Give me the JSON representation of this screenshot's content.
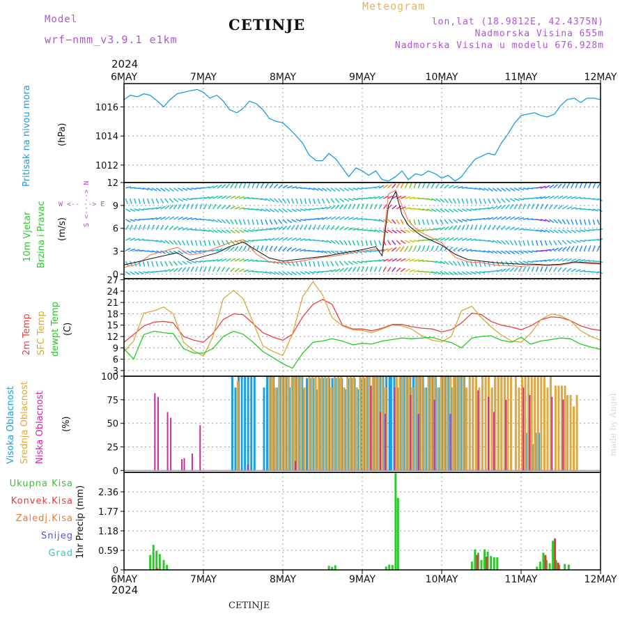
{
  "header": {
    "model_label": "Model",
    "model_name": "wrf−nmm_v3.9.1 e1km",
    "station": "CETINJE",
    "meteogram": "Meteogram",
    "lonlat": "lon,lat (18.9812E, 42.4375N)",
    "altitude": "Nadmorska Visina 655m",
    "model_altitude": "Nadmorska Visina u modelu 676.928m",
    "year_top": "2024",
    "year_bottom": "2024",
    "footer_station": "CETINJE",
    "watermark": "made by Angel"
  },
  "colors": {
    "pressure": "#1a9be6",
    "wind_label": "#2ec72e",
    "temp2m": "#e84040",
    "sfc_temp": "#d8a838",
    "dewpoint": "#22cc22",
    "cloud_high": "#19a0e6",
    "cloud_mid": "#e0a840",
    "cloud_low": "#c82a9a",
    "precip_total": "#2ec72e",
    "precip_conv": "#e03a3a",
    "precip_frozen": "#f07830",
    "snow": "#5050e0",
    "grad": "#30c8c8",
    "wind_dir_legend": "#b052d8"
  },
  "chart_data": [
    {
      "type": "line",
      "panel": "pressure",
      "ylabel_rotated": [
        "Pritisak na nivou mora",
        "(hPa)"
      ],
      "x_ticks": [
        "6MAY",
        "7MAY",
        "8MAY",
        "9MAY",
        "10MAY",
        "11MAY",
        "12MAY"
      ],
      "yticks": [
        1012,
        1014,
        1016
      ],
      "ylim": [
        1010.8,
        1017.6
      ],
      "grid": true,
      "x_days": [
        0,
        0.08,
        0.17,
        0.25,
        0.33,
        0.42,
        0.5,
        0.58,
        0.67,
        0.75,
        0.83,
        0.92,
        1,
        1.08,
        1.17,
        1.25,
        1.33,
        1.42,
        1.5,
        1.58,
        1.67,
        1.75,
        1.83,
        1.92,
        2,
        2.08,
        2.17,
        2.25,
        2.33,
        2.42,
        2.5,
        2.58,
        2.67,
        2.75,
        2.83,
        2.92,
        3,
        3.08,
        3.17,
        3.25,
        3.33,
        3.42,
        3.5,
        3.58,
        3.67,
        3.75,
        3.83,
        3.92,
        4,
        4.08,
        4.17,
        4.25,
        4.33,
        4.42,
        4.5,
        4.58,
        4.67,
        4.75,
        4.83,
        4.92,
        5,
        5.08,
        5.17,
        5.25,
        5.33,
        5.42,
        5.5,
        5.58,
        5.67,
        5.75,
        5.83,
        5.92,
        6
      ],
      "values": [
        1016.5,
        1016.8,
        1016.7,
        1016.9,
        1016.8,
        1016.4,
        1016.0,
        1016.5,
        1016.9,
        1017.0,
        1017.1,
        1017.2,
        1017.0,
        1016.6,
        1016.8,
        1016.4,
        1015.8,
        1015.6,
        1015.9,
        1016.4,
        1016.2,
        1015.8,
        1015.2,
        1015.0,
        1014.9,
        1014.5,
        1014.0,
        1013.5,
        1012.7,
        1012.3,
        1012.3,
        1012.8,
        1012.4,
        1011.8,
        1011.2,
        1011.8,
        1011.6,
        1011.3,
        1011.6,
        1011.0,
        1010.9,
        1011.2,
        1011.6,
        1011.0,
        1011.4,
        1011.3,
        1011.6,
        1011.4,
        1011.1,
        1011.3,
        1010.9,
        1011.2,
        1011.8,
        1012.4,
        1012.6,
        1012.8,
        1012.7,
        1013.5,
        1014.1,
        1014.9,
        1015.4,
        1015.5,
        1015.6,
        1015.4,
        1015.3,
        1015.5,
        1016.1,
        1016.5,
        1016.6,
        1016.3,
        1016.6,
        1016.6,
        1016.5
      ]
    },
    {
      "type": "line",
      "panel": "wind",
      "ylabel_rotated": [
        "10m Vjetar",
        "Brzina i Pravac",
        "(m/s)"
      ],
      "direction_legend": [
        "W <-- --> E",
        "S <-- --> N"
      ],
      "yticks": [
        0,
        3,
        6,
        9,
        12
      ],
      "ylim": [
        -0.6,
        12
      ],
      "grid": true,
      "x_days": [
        0,
        0.17,
        0.33,
        0.5,
        0.67,
        0.83,
        1,
        1.17,
        1.33,
        1.5,
        1.67,
        1.83,
        2,
        2.17,
        2.33,
        2.5,
        2.67,
        2.83,
        3,
        3.17,
        3.25,
        3.33,
        3.42,
        3.5,
        3.58,
        3.67,
        3.75,
        3.83,
        4,
        4.17,
        4.33,
        4.5,
        4.67,
        4.83,
        5,
        5.17,
        5.33,
        5.5,
        5.67,
        5.83,
        6
      ],
      "speed_mean": [
        1.2,
        1.6,
        2.0,
        2.4,
        2.8,
        1.8,
        2.3,
        2.8,
        3.6,
        4.2,
        3.1,
        2.1,
        1.7,
        1.9,
        2.1,
        2.3,
        2.6,
        2.9,
        3.2,
        3.6,
        2.4,
        9.0,
        10.8,
        7.8,
        6.4,
        5.6,
        5.0,
        4.6,
        3.8,
        2.6,
        1.9,
        1.7,
        1.5,
        1.4,
        1.3,
        1.3,
        1.2,
        1.3,
        1.6,
        1.5,
        1.4
      ],
      "speed_gust": [
        0.9,
        1.3,
        2.5,
        3.0,
        3.5,
        2.5,
        2.8,
        3.5,
        4.1,
        4.5,
        2.6,
        1.6,
        1.5,
        1.6,
        1.9,
        2.2,
        2.4,
        2.7,
        3.0,
        3.3,
        3.0,
        10.5,
        11.0,
        9.0,
        7.0,
        6.0,
        5.4,
        5.0,
        4.1,
        2.2,
        1.6,
        1.5,
        1.2,
        1.1,
        1.0,
        1.2,
        1.1,
        1.2,
        1.5,
        1.4,
        1.3
      ]
    },
    {
      "type": "line",
      "panel": "temperature",
      "ylabel_rotated": [
        "2m Temp",
        "SFC Temp",
        "dewpt Temp",
        "(C)"
      ],
      "yticks": [
        3,
        6,
        9,
        12,
        15,
        18,
        21,
        24,
        27
      ],
      "ylim": [
        1.5,
        27.3
      ],
      "grid": true,
      "x_days": [
        0,
        0.12,
        0.25,
        0.38,
        0.5,
        0.62,
        0.75,
        0.88,
        1,
        1.12,
        1.25,
        1.38,
        1.5,
        1.62,
        1.75,
        1.88,
        2,
        2.12,
        2.25,
        2.38,
        2.5,
        2.62,
        2.75,
        2.88,
        3,
        3.12,
        3.25,
        3.38,
        3.5,
        3.62,
        3.75,
        3.88,
        4,
        4.12,
        4.25,
        4.38,
        4.5,
        4.62,
        4.75,
        4.88,
        5,
        5.12,
        5.25,
        5.38,
        5.5,
        5.62,
        5.75,
        5.88,
        6
      ],
      "series": [
        {
          "name": "2m Temp",
          "values": [
            10.5,
            12.5,
            14.8,
            15.8,
            16.0,
            15.6,
            12.0,
            11.0,
            10.5,
            12.8,
            16.5,
            18.0,
            17.8,
            15.5,
            13.0,
            11.8,
            11.0,
            12.6,
            17.2,
            20.5,
            21.8,
            20.5,
            15.0,
            14.0,
            14.0,
            13.5,
            14.2,
            15.2,
            15.2,
            14.6,
            14.2,
            14.0,
            13.2,
            13.8,
            15.6,
            18.2,
            17.8,
            16.0,
            15.0,
            14.5,
            13.8,
            14.8,
            16.4,
            17.2,
            17.0,
            16.2,
            14.8,
            14.0,
            13.6
          ]
        },
        {
          "name": "SFC Temp",
          "values": [
            8.0,
            10.8,
            18.2,
            18.8,
            19.8,
            18.0,
            10.5,
            8.2,
            6.8,
            12.0,
            22.0,
            24.2,
            22.0,
            16.0,
            9.5,
            8.0,
            7.0,
            12.6,
            22.5,
            26.5,
            23.0,
            17.0,
            14.8,
            13.8,
            13.6,
            13.0,
            14.0,
            15.0,
            14.8,
            14.0,
            12.2,
            11.0,
            10.6,
            12.0,
            18.8,
            20.0,
            17.0,
            14.6,
            12.4,
            10.8,
            10.5,
            12.8,
            16.5,
            18.0,
            17.5,
            16.2,
            13.5,
            12.0,
            11.0
          ]
        },
        {
          "name": "dewpt Temp",
          "values": [
            8.8,
            6.0,
            12.5,
            13.4,
            13.0,
            12.8,
            8.8,
            7.6,
            7.6,
            8.8,
            12.0,
            13.4,
            12.6,
            10.6,
            8.0,
            6.4,
            4.8,
            3.6,
            7.6,
            10.5,
            10.8,
            11.4,
            10.8,
            9.8,
            10.2,
            10.0,
            10.8,
            11.2,
            11.6,
            11.4,
            11.6,
            11.8,
            11.0,
            10.4,
            9.0,
            11.6,
            12.0,
            12.2,
            11.0,
            10.5,
            11.8,
            10.0,
            10.8,
            11.2,
            11.6,
            11.4,
            10.0,
            9.2,
            8.6
          ]
        }
      ]
    },
    {
      "type": "bar",
      "panel": "clouds",
      "ylabel_rotated": [
        "Visoka Oblacnost",
        "Srednja Oblacnost",
        "Niska Oblacnost",
        "(%)"
      ],
      "yticks": [
        0,
        25,
        50,
        75,
        100
      ],
      "ylim": [
        -2,
        100
      ],
      "grid": true,
      "high_segments": [
        [
          1.35,
          1.65,
          100
        ],
        [
          1.75,
          2.25,
          100
        ],
        [
          2.25,
          3.05,
          98
        ],
        [
          3.05,
          3.35,
          100
        ],
        [
          3.35,
          4.3,
          100
        ],
        [
          4.3,
          4.85,
          98
        ],
        [
          5.05,
          5.25,
          40
        ]
      ],
      "mid_segments": [
        [
          1.4,
          1.45,
          95
        ],
        [
          1.8,
          2.3,
          100
        ],
        [
          2.3,
          3.3,
          100
        ],
        [
          3.4,
          4.9,
          100
        ],
        [
          4.9,
          5.4,
          100
        ],
        [
          5.4,
          5.55,
          90
        ],
        [
          5.55,
          5.7,
          80
        ]
      ],
      "low_bars": [
        [
          0.38,
          82
        ],
        [
          0.42,
          78
        ],
        [
          0.54,
          62
        ],
        [
          0.58,
          56
        ],
        [
          0.72,
          12
        ],
        [
          0.75,
          13
        ],
        [
          0.85,
          18
        ],
        [
          0.95,
          48
        ],
        [
          1.55,
          6
        ],
        [
          2.15,
          10
        ],
        [
          3.1,
          90
        ],
        [
          3.22,
          62
        ],
        [
          3.28,
          60
        ],
        [
          3.4,
          88
        ],
        [
          3.6,
          80
        ],
        [
          3.7,
          60
        ],
        [
          3.9,
          75
        ],
        [
          4.1,
          60
        ],
        [
          4.45,
          85
        ],
        [
          4.58,
          78
        ],
        [
          4.65,
          62
        ],
        [
          4.8,
          75
        ],
        [
          5.02,
          88
        ],
        [
          5.1,
          80
        ],
        [
          5.38,
          78
        ],
        [
          5.52,
          75
        ]
      ]
    },
    {
      "type": "bar",
      "panel": "precip",
      "ylabel_rotated": [
        "1hr Precip (mm)"
      ],
      "legend": [
        "Ukupna Kisa",
        "Konvek.Kisa",
        "Zaledj.Kisa",
        "Snijeg",
        "Grad"
      ],
      "yticks": [
        0,
        0.59,
        1.18,
        1.77,
        2.36
      ],
      "ylim": [
        0,
        2.95
      ],
      "grid": true,
      "total_bars": [
        [
          0.33,
          0.45
        ],
        [
          0.37,
          0.76
        ],
        [
          0.41,
          0.58
        ],
        [
          0.45,
          0.48
        ],
        [
          0.5,
          0.3
        ],
        [
          0.54,
          0.15
        ],
        [
          2.58,
          0.12
        ],
        [
          2.62,
          0.09
        ],
        [
          2.66,
          0.14
        ],
        [
          3.3,
          0.1
        ],
        [
          3.34,
          0.16
        ],
        [
          3.38,
          0.15
        ],
        [
          3.42,
          2.92
        ],
        [
          3.45,
          2.18
        ],
        [
          4.38,
          0.25
        ],
        [
          4.42,
          0.62
        ],
        [
          4.46,
          0.52
        ],
        [
          4.5,
          0.3
        ],
        [
          4.54,
          0.62
        ],
        [
          4.58,
          0.55
        ],
        [
          4.62,
          0.42
        ],
        [
          4.66,
          0.38
        ],
        [
          4.7,
          0.38
        ],
        [
          5.2,
          0.1
        ],
        [
          5.24,
          0.25
        ],
        [
          5.28,
          0.52
        ],
        [
          5.32,
          0.3
        ],
        [
          5.36,
          0.2
        ],
        [
          5.4,
          0.88
        ],
        [
          5.44,
          0.3
        ],
        [
          5.48,
          0.15
        ],
        [
          5.55,
          0.18
        ],
        [
          5.6,
          0.16
        ]
      ],
      "conv_bars": [
        [
          0.39,
          0.05
        ],
        [
          4.42,
          0.45
        ],
        [
          4.54,
          0.4
        ],
        [
          5.28,
          0.45
        ],
        [
          5.4,
          0.95
        ],
        [
          5.44,
          0.22
        ]
      ]
    }
  ]
}
